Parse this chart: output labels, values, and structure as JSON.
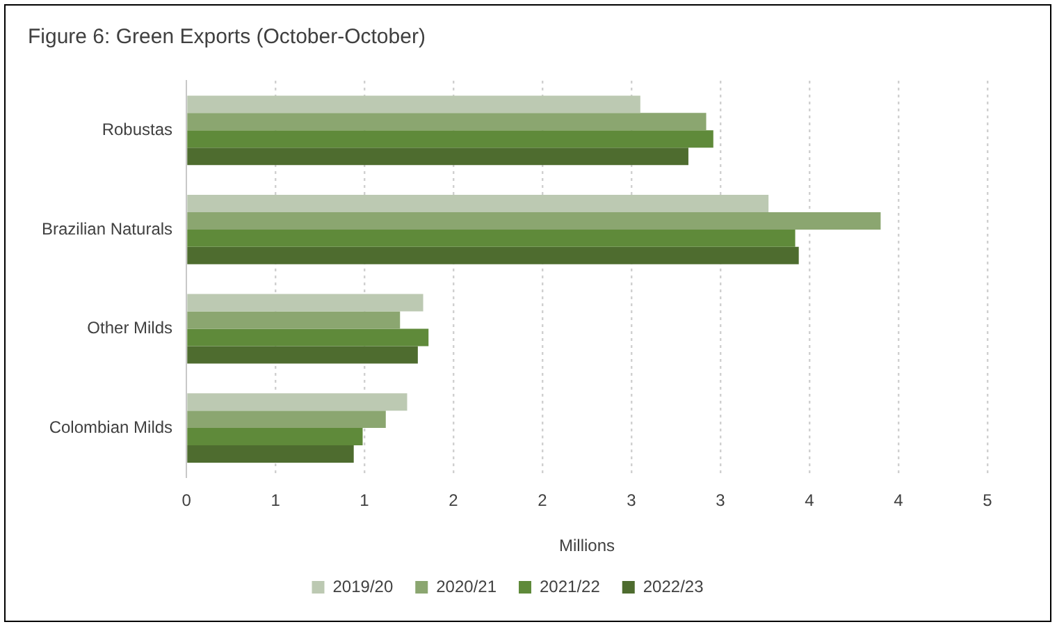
{
  "chart_data": {
    "type": "bar",
    "orientation": "horizontal",
    "title": "Figure 6: Green Exports (October-October)",
    "xlabel": "Millions",
    "categories": [
      "Robustas",
      "Brazilian Naturals",
      "Other Milds",
      "Colombian Milds"
    ],
    "series": [
      {
        "name": "2019/20",
        "color": "#bcc9b2",
        "values": [
          2.55,
          3.27,
          1.33,
          1.24
        ]
      },
      {
        "name": "2020/21",
        "color": "#8ba670",
        "values": [
          2.92,
          3.9,
          1.2,
          1.12
        ]
      },
      {
        "name": "2021/22",
        "color": "#5f8a3a",
        "values": [
          2.96,
          3.42,
          1.36,
          0.99
        ]
      },
      {
        "name": "2022/23",
        "color": "#4e6c2f",
        "values": [
          2.82,
          3.44,
          1.3,
          0.94
        ]
      }
    ],
    "xlim": [
      0,
      4.5
    ],
    "xticks": [
      0,
      {
        "value": 0.5,
        "label": "1"
      },
      1,
      {
        "value": 1.5,
        "label": "2"
      },
      2,
      {
        "value": 2.5,
        "label": "3"
      },
      3,
      {
        "value": 3.5,
        "label": "4"
      },
      4,
      {
        "value": 4.5,
        "label": "5"
      }
    ],
    "grid": "x",
    "legend": "bottom"
  }
}
